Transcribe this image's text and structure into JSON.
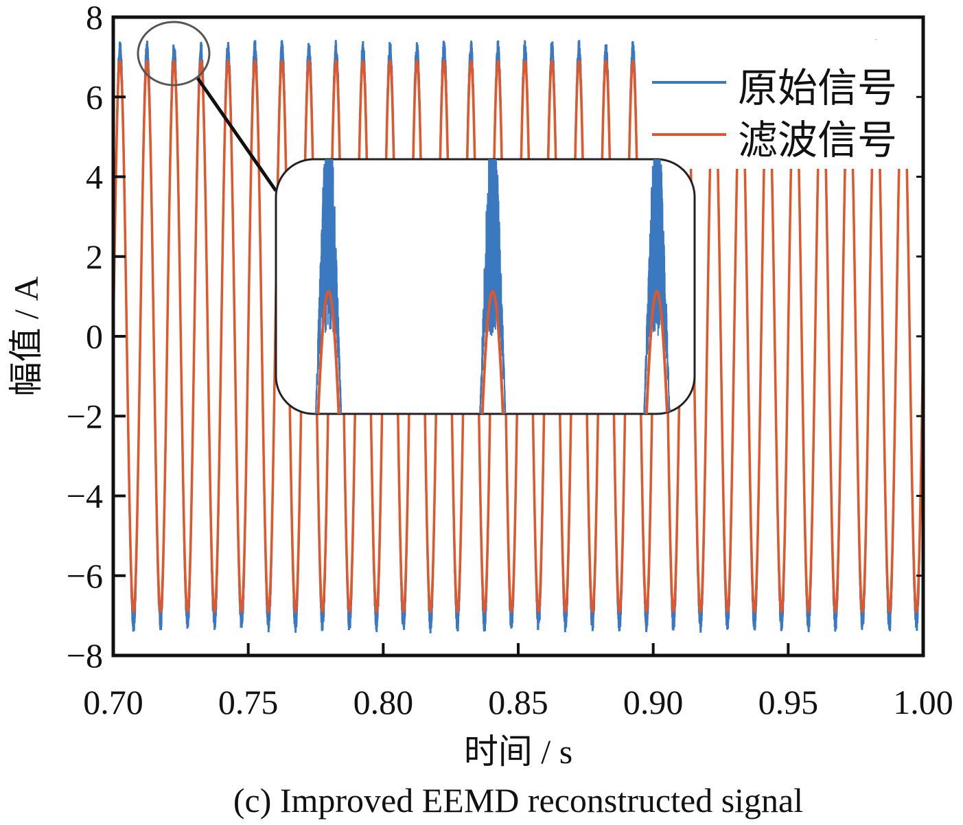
{
  "chart_data": {
    "type": "line",
    "title": "",
    "caption": "(c) Improved EEMD reconstructed signal",
    "xlabel": "时间 / s",
    "ylabel": "幅值 / A",
    "xlim": [
      0.7,
      1.0
    ],
    "ylim": [
      -8,
      8
    ],
    "xticks": [
      "0.70",
      "0.75",
      "0.80",
      "0.85",
      "0.90",
      "0.95",
      "1.00"
    ],
    "yticks": [
      "8",
      "6",
      "4",
      "2",
      "0",
      "−2",
      "−4",
      "−6",
      "−8"
    ],
    "grid": false,
    "legend_position": "top-right",
    "series": [
      {
        "name": "原始信号",
        "color": "#3a78c0",
        "frequency_hz": 100,
        "amplitude": 7.2,
        "first_peak_s": 0.7025,
        "noise": "high-frequency noise near peaks"
      },
      {
        "name": "滤波信号",
        "color": "#e0582a",
        "frequency_hz": 100,
        "amplitude": 6.9,
        "first_peak_s": 0.7025
      }
    ],
    "inset": {
      "description_x_range": [
        0.7093,
        0.7348
      ],
      "y_range": [
        6.37,
        7.35
      ],
      "highlight_center_s": 0.7225
    }
  }
}
